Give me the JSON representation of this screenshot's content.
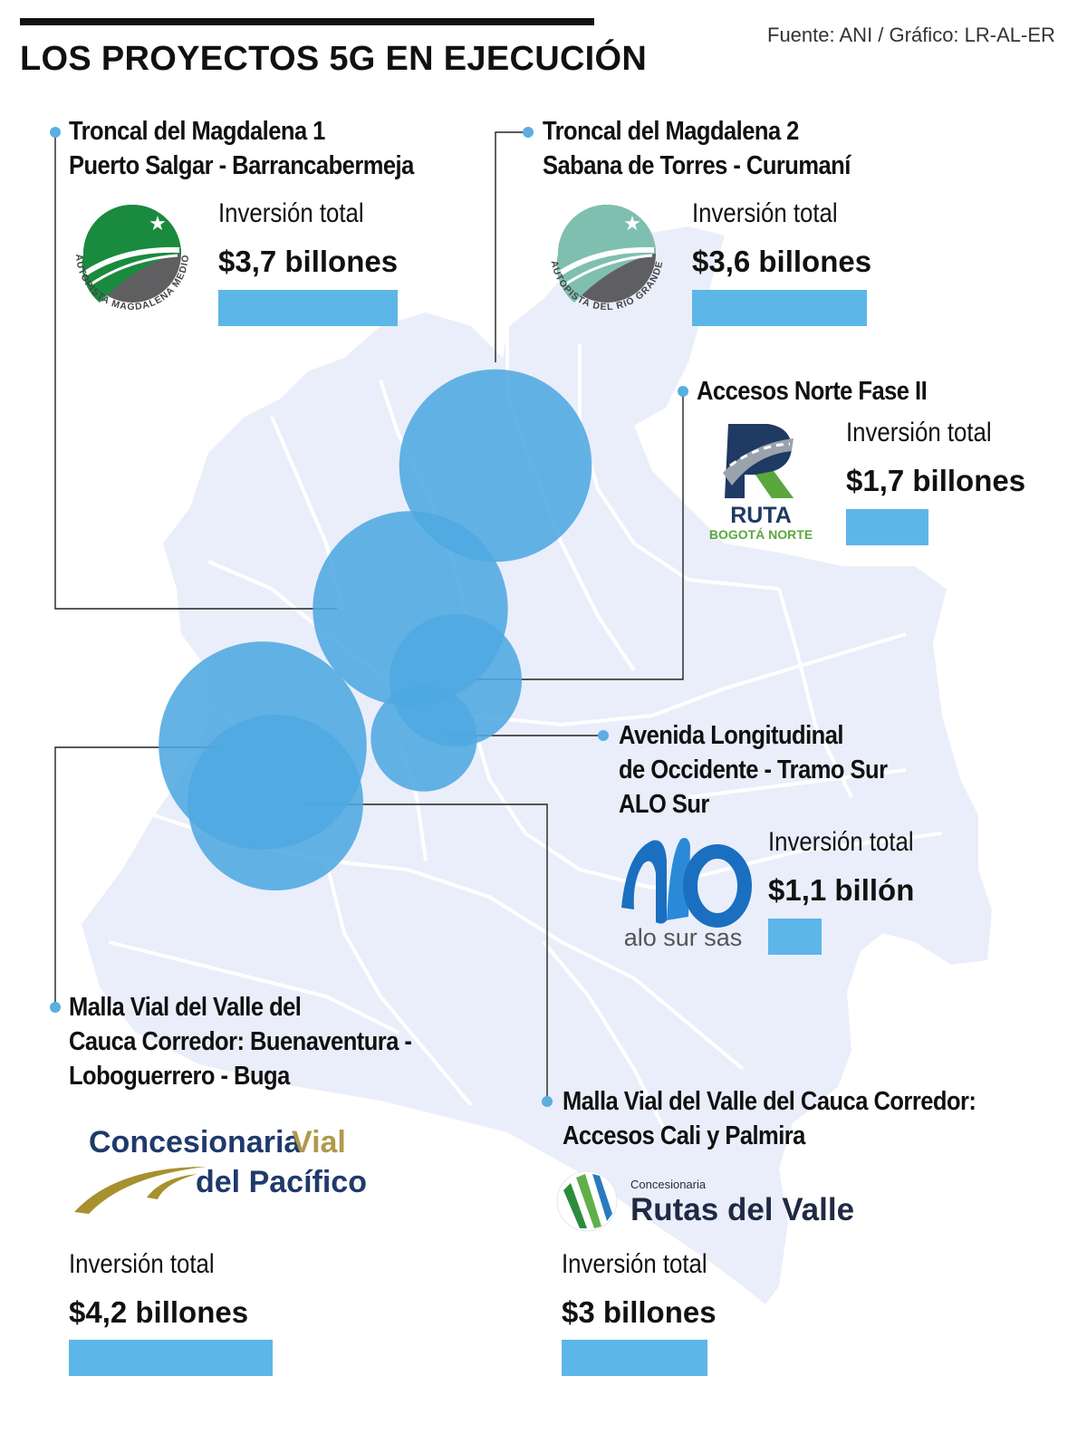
{
  "header": {
    "title": "LOS PROYECTOS 5G EN EJECUCIÓN",
    "source": "Fuente: ANI / Gráfico: LR-AL-ER"
  },
  "investment_label": "Inversión total",
  "colors": {
    "bubble": "#4fa9e0",
    "bar": "#5db6e8",
    "map": "#eaeefa",
    "map_border": "#ffffff",
    "leader": "#222222"
  },
  "projects": [
    {
      "name_line1": "Troncal del Magdalena 1",
      "name_line2": "Puerto Salgar - Barrancabermeja",
      "name_line3": "",
      "amount_text": "$3,7 billones",
      "investment_billions_cop": 3.7,
      "logo": {
        "type": "autopista",
        "text": "AUTOPISTA MAGDALENA MEDIO",
        "color": "#1a8a3e"
      }
    },
    {
      "name_line1": "Troncal del Magdalena 2",
      "name_line2": "Sabana de Torres - Curumaní",
      "name_line3": "",
      "amount_text": "$3,6 billones",
      "investment_billions_cop": 3.6,
      "logo": {
        "type": "autopista",
        "text": "AUTOPISTA DEL RIO GRANDE",
        "color": "#7fbfb0"
      }
    },
    {
      "name_line1": "Accesos Norte Fase II",
      "name_line2": "",
      "name_line3": "",
      "amount_text": "$1,7 billones",
      "investment_billions_cop": 1.7,
      "logo": {
        "type": "ruta",
        "text1": "RUTA",
        "text2": "BOGOTÁ NORTE"
      }
    },
    {
      "name_line1": "Avenida Longitudinal",
      "name_line2": "de Occidente - Tramo Sur",
      "name_line3": "ALO Sur",
      "amount_text": "$1,1 billón",
      "investment_billions_cop": 1.1,
      "logo": {
        "type": "alo",
        "text": "alo sur sas"
      }
    },
    {
      "name_line1": "Malla Vial del Valle del",
      "name_line2": "Cauca Corredor: Buenaventura -",
      "name_line3": "Loboguerrero - Buga",
      "amount_text": "$4,2 billones",
      "investment_billions_cop": 4.2,
      "logo": {
        "type": "cvp",
        "text1": "Concesionaria",
        "text2": "Vial",
        "text3": "del Pacífico"
      }
    },
    {
      "name_line1": "Malla Vial del Valle del Cauca Corredor:",
      "name_line2": "Accesos Cali y Palmira",
      "name_line3": "",
      "amount_text": "$3 billones",
      "investment_billions_cop": 3.0,
      "logo": {
        "type": "rutas",
        "text1": "Concesionaria",
        "text2": "Rutas del Valle"
      }
    }
  ],
  "chart_data": {
    "type": "bar",
    "title": "LOS PROYECTOS 5G EN EJECUCIÓN",
    "unit": "billones COP",
    "categories": [
      "Troncal del Magdalena 1",
      "Troncal del Magdalena 2",
      "Accesos Norte Fase II",
      "Avenida Longitudinal de Occidente - Tramo Sur ALO Sur",
      "Malla Vial del Valle del Cauca Corredor: Buenaventura - Loboguerrero - Buga",
      "Malla Vial del Valle del Cauca Corredor: Accesos Cali y Palmira"
    ],
    "values": [
      3.7,
      3.6,
      1.7,
      1.1,
      4.2,
      3.0
    ]
  }
}
